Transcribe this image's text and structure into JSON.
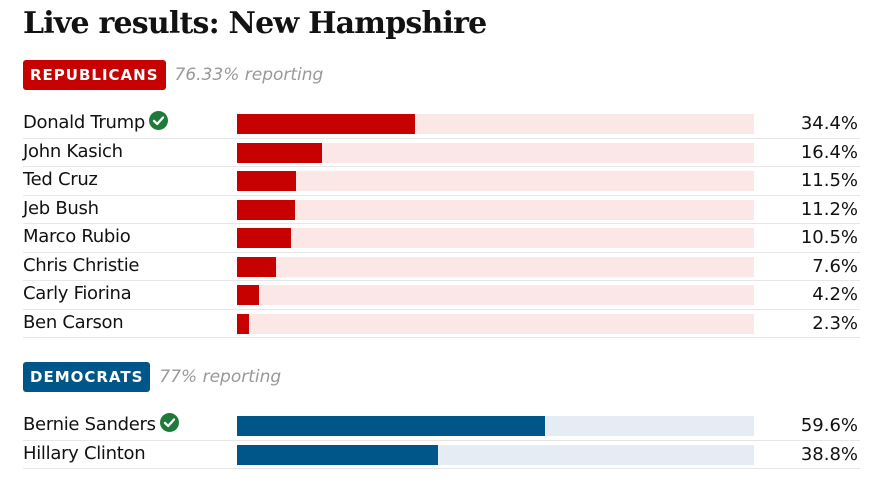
{
  "page": {
    "title": "Live results: New Hampshire"
  },
  "colors": {
    "republican_bar": "#c70000",
    "republican_track": "#fbe7e6",
    "republican_badge": "#c70000",
    "democrat_bar": "#005689",
    "democrat_track": "#e5ecf3",
    "democrat_badge": "#005689",
    "winner_check": "#1f7a3a"
  },
  "chart_data": [
    {
      "type": "bar",
      "orientation": "horizontal",
      "party": "REPUBLICANS",
      "reporting": "76.33% reporting",
      "xlim": [
        0,
        100
      ],
      "categories": [
        "Donald Trump",
        "John Kasich",
        "Ted Cruz",
        "Jeb Bush",
        "Marco Rubio",
        "Chris Christie",
        "Carly Fiorina",
        "Ben Carson"
      ],
      "values": [
        34.4,
        16.4,
        11.5,
        11.2,
        10.5,
        7.6,
        4.2,
        2.3
      ],
      "labels": [
        "34.4%",
        "16.4%",
        "11.5%",
        "11.2%",
        "10.5%",
        "7.6%",
        "4.2%",
        "2.3%"
      ],
      "winner": [
        true,
        false,
        false,
        false,
        false,
        false,
        false,
        false
      ]
    },
    {
      "type": "bar",
      "orientation": "horizontal",
      "party": "DEMOCRATS",
      "reporting": "77% reporting",
      "xlim": [
        0,
        100
      ],
      "categories": [
        "Bernie Sanders",
        "Hillary Clinton"
      ],
      "values": [
        59.6,
        38.8
      ],
      "labels": [
        "59.6%",
        "38.8%"
      ],
      "winner": [
        true,
        false
      ]
    }
  ]
}
